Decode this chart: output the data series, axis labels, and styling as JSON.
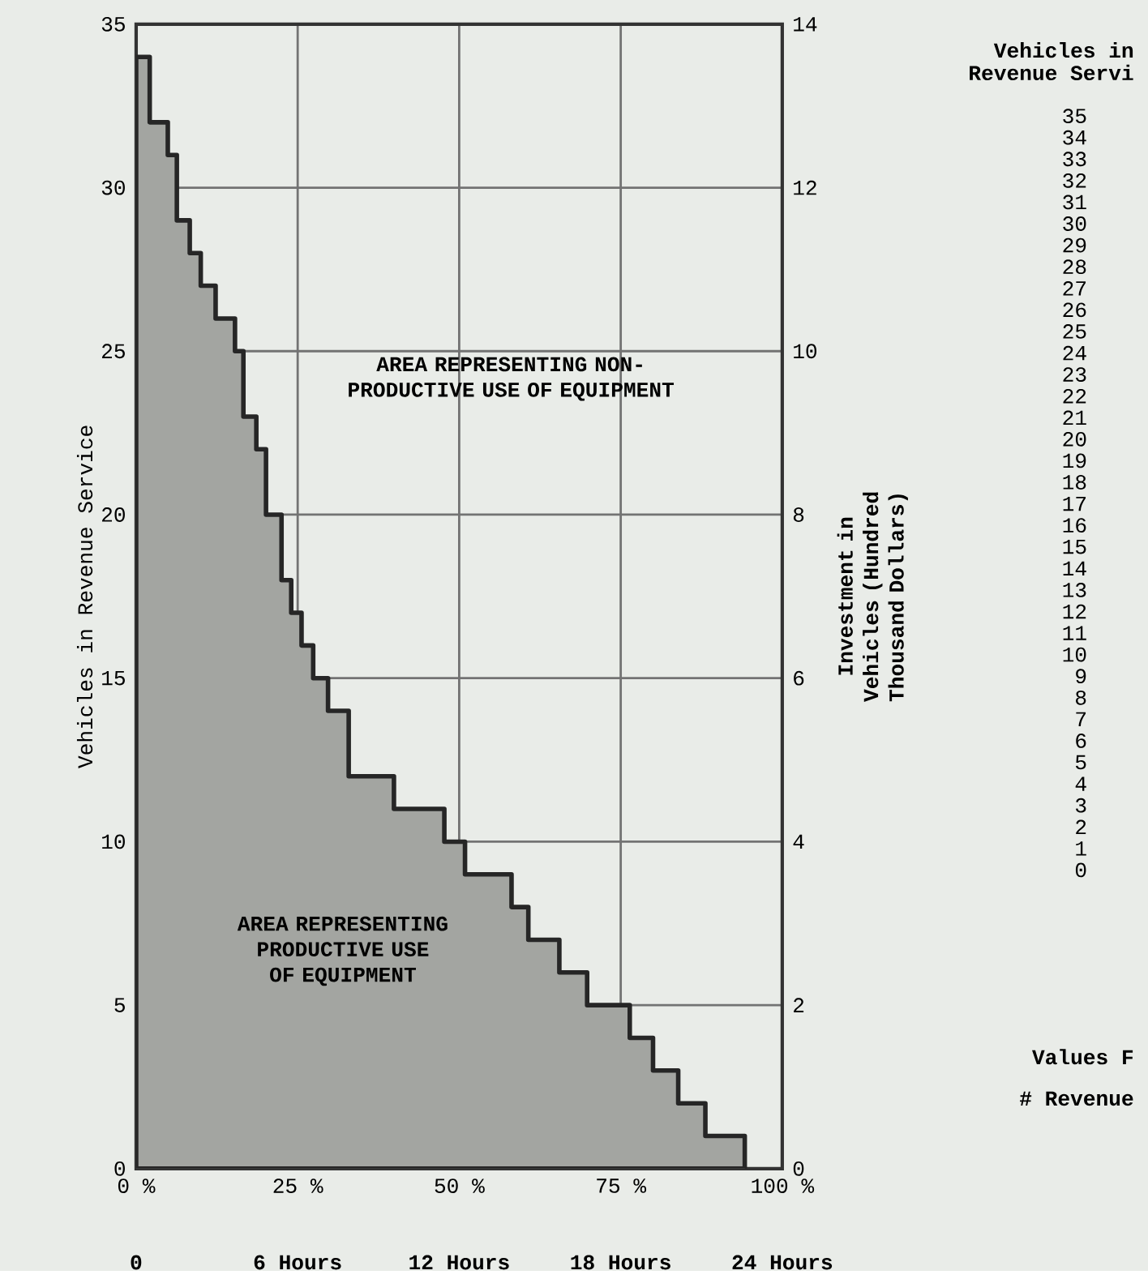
{
  "chart_data": {
    "type": "area",
    "ylabel": "Vehicles in Revenue Service",
    "y2label": "Investment in Vehicles (Hundred Thousand Dollars)",
    "x": [
      0,
      2.1,
      2.1,
      4.9,
      4.9,
      6.3,
      6.3,
      8.3,
      8.3,
      10,
      10,
      12.3,
      12.3,
      15.3,
      15.3,
      16.6,
      16.6,
      18.6,
      18.6,
      20.1,
      20.1,
      22.5,
      22.5,
      24,
      24,
      25.6,
      25.6,
      27.4,
      27.4,
      29.7,
      29.7,
      32.9,
      32.9,
      39.9,
      39.9,
      47.7,
      47.7,
      50.9,
      50.9,
      58.1,
      58.1,
      60.7,
      60.7,
      65.5,
      65.5,
      69.8,
      69.8,
      76.4,
      76.4,
      80,
      80,
      83.9,
      83.9,
      88.1,
      88.1,
      94.2,
      94.2
    ],
    "values": [
      34,
      34,
      32,
      32,
      31,
      31,
      29,
      29,
      28,
      28,
      27,
      27,
      26,
      26,
      25,
      25,
      23,
      23,
      22,
      22,
      20,
      20,
      18,
      18,
      17,
      17,
      16,
      16,
      15,
      15,
      14,
      14,
      12,
      12,
      11,
      11,
      10,
      10,
      9,
      9,
      8,
      8,
      7,
      7,
      6,
      6,
      5,
      5,
      4,
      4,
      3,
      3,
      2,
      2,
      1,
      1,
      0
    ],
    "color": "#a3a5a1",
    "xlim": [
      0,
      100
    ],
    "xticks": [
      {
        "value": 0,
        "label": "0 %"
      },
      {
        "value": 25,
        "label": "25 %"
      },
      {
        "value": 50,
        "label": "50 %"
      },
      {
        "value": 75,
        "label": "75 %"
      },
      {
        "value": 100,
        "label": "100 %"
      }
    ],
    "x2lim": [
      0,
      24
    ],
    "x2ticks": [
      0,
      {
        "value": 6,
        "label": "6 Hours"
      },
      {
        "value": 12,
        "label": "12 Hours"
      },
      {
        "value": 18,
        "label": "18 Hours"
      },
      {
        "value": 24,
        "label": "24 Hours"
      }
    ],
    "ylim": [
      0,
      35
    ],
    "yticks": [
      0,
      5,
      10,
      15,
      20,
      25,
      30,
      35
    ],
    "y2lim": [
      0,
      14
    ],
    "y2ticks": [
      0,
      2,
      4,
      6,
      8,
      10,
      12,
      14
    ],
    "grid": true,
    "annotations": [
      "AREA REPRESENTING NON-PRODUCTIVE USE OF EQUIPMENT",
      "AREA REPRESENTING PRODUCTIVE USE OF EQUIPMENT",
      "Vehicles in",
      "Revenue Servi",
      "35",
      "34",
      "33",
      "32",
      "31",
      "30",
      "29",
      "28",
      "27",
      "26",
      "25",
      "24",
      "23",
      "22",
      "21",
      "20",
      "19",
      "18",
      "17",
      "16",
      "15",
      "14",
      "13",
      "12",
      "11",
      "10",
      "9",
      "8",
      "7",
      "6",
      "5",
      "4",
      "3",
      "2",
      "1",
      "0",
      "Values F",
      "# Revenue"
    ]
  }
}
